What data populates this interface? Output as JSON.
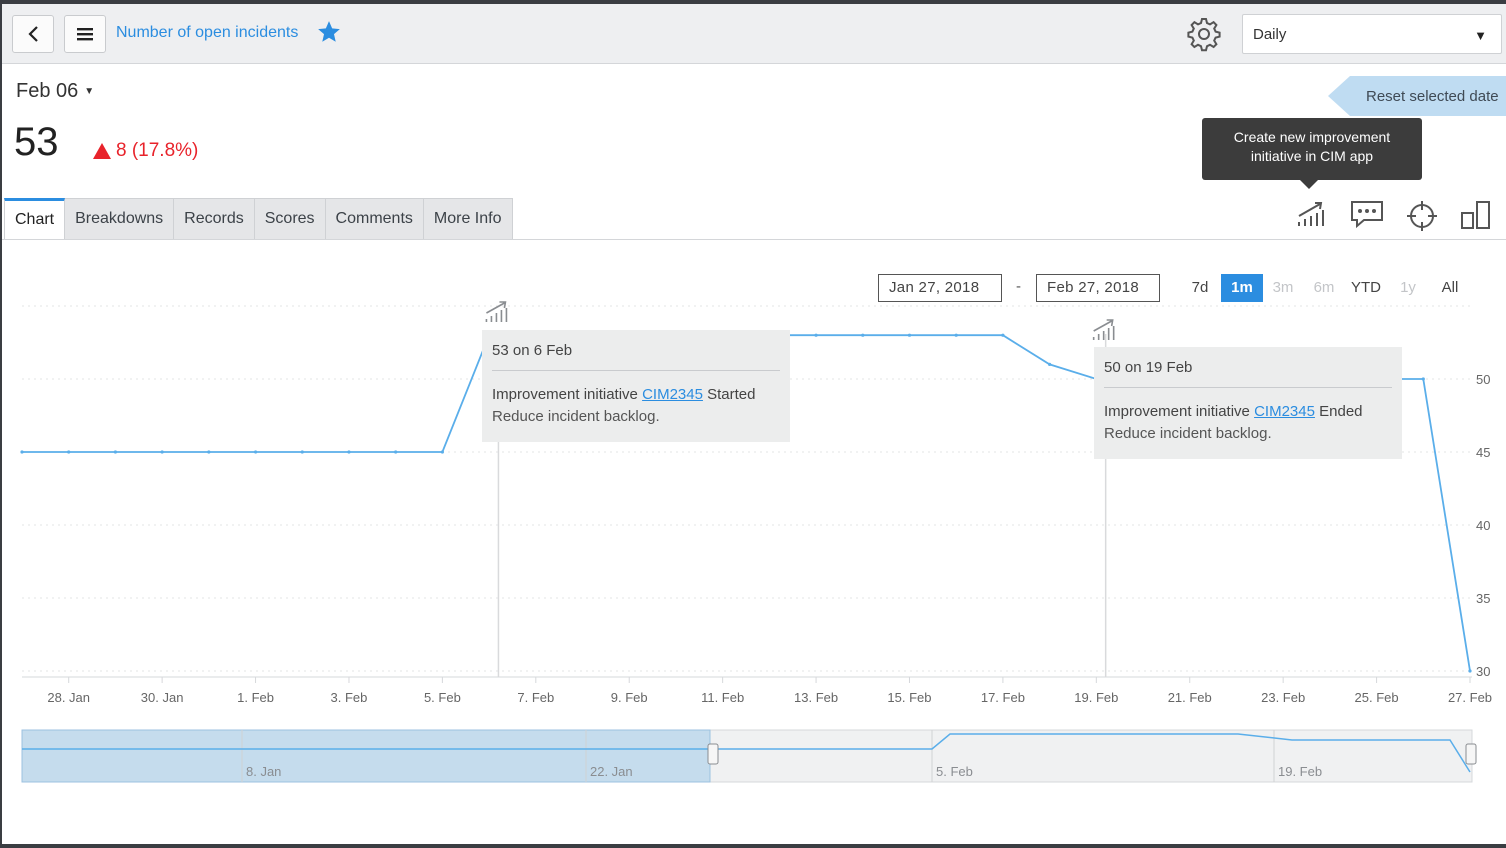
{
  "header": {
    "title": "Number of open incidents",
    "frequency": "Daily"
  },
  "score": {
    "date": "Feb 06",
    "value": "53",
    "change": "8 (17.8%)",
    "change_color": "#e8232b"
  },
  "reset_label": "Reset selected date",
  "tooltip": {
    "line1": "Create new improvement",
    "line2": "initiative in CIM app"
  },
  "tabs": [
    {
      "label": "Chart",
      "active": true
    },
    {
      "label": "Breakdowns"
    },
    {
      "label": "Records"
    },
    {
      "label": "Scores"
    },
    {
      "label": "Comments"
    },
    {
      "label": "More Info"
    }
  ],
  "range": {
    "from": "Jan 27, 2018",
    "to": "Feb 27, 2018",
    "separator": "-",
    "zoom": [
      "7d",
      "1m",
      "3m",
      "6m",
      "YTD",
      "1y",
      "All"
    ],
    "zoom_active": "1m"
  },
  "annotations": [
    {
      "title": "53 on 6 Feb",
      "prefix": "Improvement initiative",
      "link": "CIM2345",
      "status": "Started",
      "description": "Reduce incident backlog."
    },
    {
      "title": "50 on 19 Feb",
      "prefix": "Improvement initiative",
      "link": "CIM2345",
      "status": "Ended",
      "description": "Reduce incident backlog."
    }
  ],
  "colors": {
    "accent": "#2b8de0",
    "line": "#5aaeea"
  },
  "chart_data": {
    "type": "line",
    "y_ticks": [
      30,
      35,
      40,
      45,
      50
    ],
    "ylim": [
      30,
      55
    ],
    "x_ticks": [
      "28. Jan",
      "30. Jan",
      "1. Feb",
      "3. Feb",
      "5. Feb",
      "7. Feb",
      "9. Feb",
      "11. Feb",
      "13. Feb",
      "15. Feb",
      "17. Feb",
      "19. Feb",
      "21. Feb",
      "23. Feb",
      "25. Feb",
      "27. Feb"
    ],
    "series": [
      {
        "x": [
          "27 Jan",
          "28 Jan",
          "29 Jan",
          "30 Jan",
          "31 Jan",
          "1 Feb",
          "2 Feb",
          "3 Feb",
          "4 Feb",
          "5 Feb",
          "6 Feb",
          "7 Feb",
          "8 Feb",
          "9 Feb",
          "10 Feb",
          "11 Feb",
          "12 Feb",
          "13 Feb",
          "14 Feb",
          "15 Feb",
          "16 Feb",
          "17 Feb",
          "18 Feb",
          "19 Feb",
          "20 Feb",
          "21 Feb",
          "22 Feb",
          "23 Feb",
          "24 Feb",
          "25 Feb",
          "26 Feb",
          "27 Feb"
        ],
        "values": [
          45,
          45,
          45,
          45,
          45,
          45,
          45,
          45,
          45,
          45,
          53,
          53,
          53,
          53,
          53,
          53,
          53,
          53,
          53,
          53,
          53,
          53,
          51,
          50,
          50,
          50,
          50,
          50,
          50,
          50,
          50,
          30
        ]
      }
    ],
    "navigator_ticks": [
      "8. Jan",
      "22. Jan",
      "5. Feb",
      "19. Feb"
    ]
  }
}
